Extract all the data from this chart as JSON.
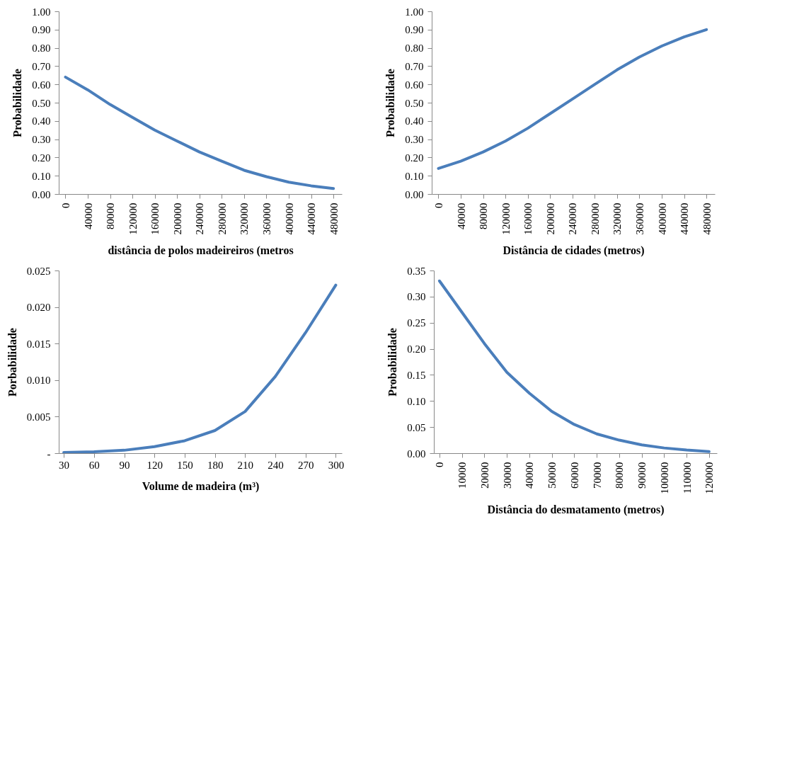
{
  "chart_data": [
    {
      "type": "line",
      "xlabel": "distância de polos madeireiros (metros",
      "ylabel": "Probabilidade",
      "x": [
        0,
        40000,
        80000,
        120000,
        160000,
        200000,
        240000,
        280000,
        320000,
        360000,
        400000,
        440000,
        480000
      ],
      "xlim": [
        -12000,
        495000
      ],
      "xticks": [
        0,
        40000,
        80000,
        120000,
        160000,
        200000,
        240000,
        280000,
        320000,
        360000,
        400000,
        440000,
        480000
      ],
      "ylim": [
        0,
        1
      ],
      "yticks": [
        {
          "value": 0,
          "label": "0.00"
        },
        {
          "value": 0.1,
          "label": "0.10"
        },
        {
          "value": 0.2,
          "label": "0.20"
        },
        {
          "value": 0.3,
          "label": "0.30"
        },
        {
          "value": 0.4,
          "label": "0.40"
        },
        {
          "value": 0.5,
          "label": "0.50"
        },
        {
          "value": 0.6,
          "label": "0.60"
        },
        {
          "value": 0.7,
          "label": "0.70"
        },
        {
          "value": 0.8,
          "label": "0.80"
        },
        {
          "value": 0.9,
          "label": "0.90"
        },
        {
          "value": 1,
          "label": "1.00"
        }
      ],
      "grid": false,
      "marker": "none",
      "series": [
        {
          "color": "#4a7ebb",
          "values": [
            0.64,
            0.57,
            0.49,
            0.42,
            0.35,
            0.29,
            0.23,
            0.18,
            0.13,
            0.095,
            0.065,
            0.045,
            0.03
          ]
        }
      ]
    },
    {
      "type": "line",
      "xlabel": "Distância de cidades (metros)",
      "ylabel": "Probabilidade",
      "x": [
        0,
        40000,
        80000,
        120000,
        160000,
        200000,
        240000,
        280000,
        320000,
        360000,
        400000,
        440000,
        480000
      ],
      "xlim": [
        -12000,
        495000
      ],
      "xticks": [
        0,
        40000,
        80000,
        120000,
        160000,
        200000,
        240000,
        280000,
        320000,
        360000,
        400000,
        440000,
        480000
      ],
      "ylim": [
        0,
        1
      ],
      "yticks": [
        {
          "value": 0,
          "label": "0.00"
        },
        {
          "value": 0.1,
          "label": "0.10"
        },
        {
          "value": 0.2,
          "label": "0.20"
        },
        {
          "value": 0.3,
          "label": "0.30"
        },
        {
          "value": 0.4,
          "label": "0.40"
        },
        {
          "value": 0.5,
          "label": "0.50"
        },
        {
          "value": 0.6,
          "label": "0.60"
        },
        {
          "value": 0.7,
          "label": "0.70"
        },
        {
          "value": 0.8,
          "label": "0.80"
        },
        {
          "value": 0.9,
          "label": "0.90"
        },
        {
          "value": 1,
          "label": "1.00"
        }
      ],
      "grid": false,
      "marker": "none",
      "series": [
        {
          "color": "#4a7ebb",
          "values": [
            0.14,
            0.18,
            0.23,
            0.29,
            0.36,
            0.44,
            0.52,
            0.6,
            0.68,
            0.75,
            0.81,
            0.86,
            0.9
          ]
        }
      ]
    },
    {
      "type": "line",
      "xlabel": "Volume de madeira (m³)",
      "ylabel": "Porbabilidade",
      "x": [
        30,
        60,
        90,
        120,
        150,
        180,
        210,
        240,
        270,
        300
      ],
      "xlim": [
        25,
        306
      ],
      "xticks": [
        30,
        60,
        90,
        120,
        150,
        180,
        210,
        240,
        270,
        300
      ],
      "ylim": [
        0,
        0.025
      ],
      "yticks": [
        {
          "value": 0,
          "label": "-"
        },
        0.005,
        {
          "value": 0.01,
          "label": "0.010"
        },
        0.015,
        {
          "value": 0.02,
          "label": "0.020"
        },
        0.025
      ],
      "grid": false,
      "marker": "none",
      "series": [
        {
          "color": "#4a7ebb",
          "values": [
            0.0001,
            0.0002,
            0.0004,
            0.0009,
            0.0017,
            0.0031,
            0.0057,
            0.0105,
            0.0165,
            0.023
          ]
        }
      ]
    },
    {
      "type": "line",
      "xlabel": "Distância do desmatamento (metros)",
      "ylabel": "Probabilidade",
      "x": [
        0,
        10000,
        20000,
        30000,
        40000,
        50000,
        60000,
        70000,
        80000,
        90000,
        100000,
        110000,
        120000
      ],
      "xlim": [
        -2500,
        123500
      ],
      "xticks": [
        0,
        10000,
        20000,
        30000,
        40000,
        50000,
        60000,
        70000,
        80000,
        90000,
        100000,
        110000,
        120000
      ],
      "ylim": [
        0,
        0.35
      ],
      "yticks": [
        {
          "value": 0,
          "label": "0.00"
        },
        0.05,
        {
          "value": 0.1,
          "label": "0.10"
        },
        0.15,
        {
          "value": 0.2,
          "label": "0.20"
        },
        0.25,
        {
          "value": 0.3,
          "label": "0.30"
        },
        0.35
      ],
      "grid": false,
      "marker": "none",
      "series": [
        {
          "color": "#4a7ebb",
          "values": [
            0.33,
            0.27,
            0.21,
            0.155,
            0.115,
            0.08,
            0.055,
            0.037,
            0.025,
            0.016,
            0.01,
            0.006,
            0.003
          ]
        }
      ]
    }
  ]
}
